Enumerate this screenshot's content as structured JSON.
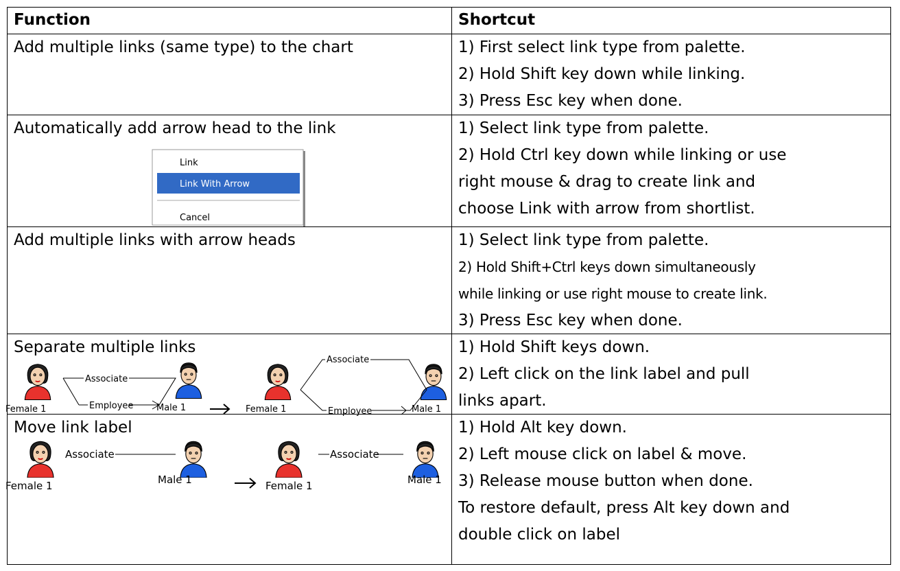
{
  "table": {
    "header": [
      "Function",
      "Shortcut"
    ],
    "rows": [
      {
        "function": "Add multiple links (same type) to the chart",
        "shortcut": [
          "1) First select link type from palette.",
          "2) Hold Shift key down while linking.",
          "3) Press Esc key when done."
        ]
      },
      {
        "function": "Automatically add arrow head to the link",
        "menu": [
          "Link",
          "Link With Arrow",
          "Cancel"
        ],
        "shortcut": [
          "1) Select link type from palette.",
          "2) Hold Ctrl key down while linking or use",
          "right mouse & drag to create link and",
          "choose Link with arrow from shortlist."
        ]
      },
      {
        "function": "Add multiple links with arrow heads",
        "shortcut": [
          "1) Select link type from palette.",
          "2) Hold Shift+Ctrl keys down simultaneously",
          "while linking or use right mouse to create link.",
          "3) Press Esc key when done."
        ]
      },
      {
        "function": "Separate multiple links",
        "diagram": {
          "female": "Female 1",
          "male": "Male 1",
          "links": [
            "Associate",
            "Employee"
          ]
        },
        "shortcut": [
          "1) Hold Shift keys down.",
          "2) Left click on the link label and pull",
          "links apart."
        ]
      },
      {
        "function": "Move link label",
        "diagram": {
          "female": "Female 1",
          "male": "Male 1",
          "links": [
            "Associate"
          ]
        },
        "shortcut": [
          "1) Hold Alt key down.",
          "2) Left mouse click on label & move.",
          "3) Release mouse button when done.",
          "To restore default, press Alt key down and",
          "double click on label"
        ]
      }
    ]
  }
}
